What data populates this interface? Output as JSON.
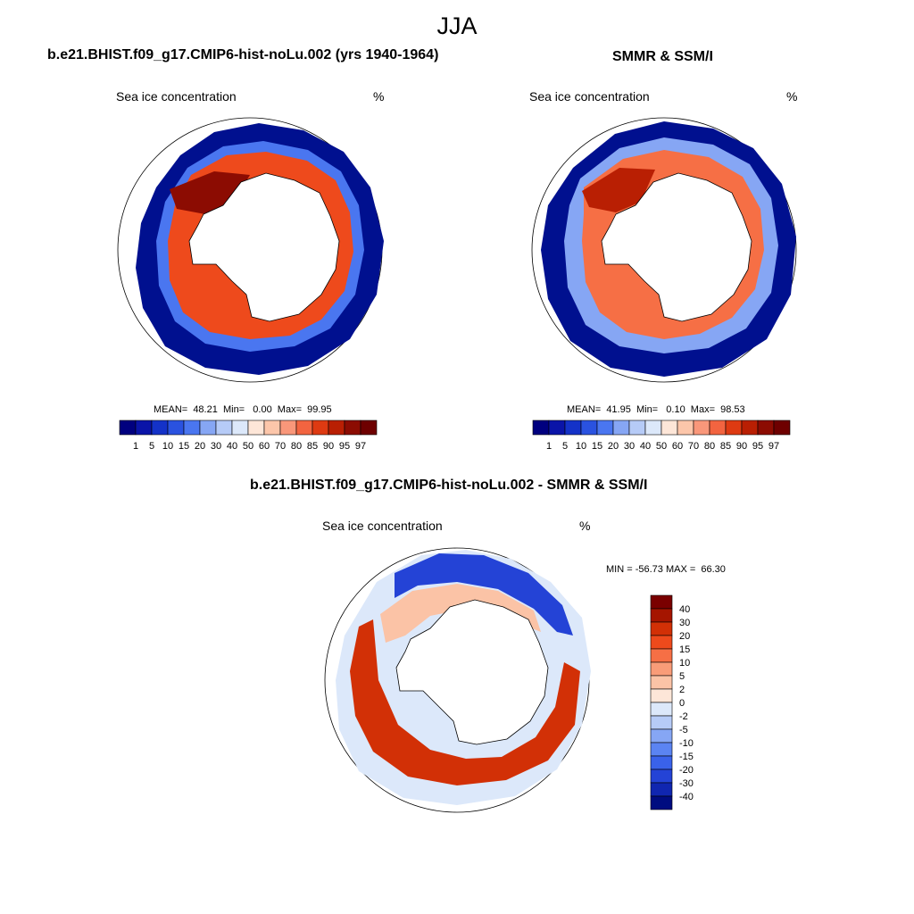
{
  "main_title": "JJA",
  "panels": [
    {
      "title": "b.e21.BHIST.f09_g17.CMIP6-hist-noLu.002 (yrs 1940-1964)",
      "variable": "Sea ice concentration",
      "units": "%",
      "stats_text": "MEAN=  48.21  Min=   0.00  Max=  99.95"
    },
    {
      "title": "SMMR & SSM/I",
      "variable": "Sea ice concentration",
      "units": "%",
      "stats_text": "MEAN=  41.95  Min=   0.10  Max=  98.53"
    },
    {
      "title": "b.e21.BHIST.f09_g17.CMIP6-hist-noLu.002 - SMMR & SSM/I",
      "variable": "Sea ice concentration",
      "units": "%",
      "stats_text": "MIN = -56.73 MAX =  66.30"
    }
  ],
  "colorbar_conc": {
    "labels": [
      "1",
      "5",
      "10",
      "15",
      "20",
      "30",
      "40",
      "50",
      "60",
      "70",
      "80",
      "85",
      "90",
      "95",
      "97"
    ],
    "colors": [
      "#00007f",
      "#0a14a8",
      "#1432c8",
      "#2a52e0",
      "#4a76f0",
      "#86a6f4",
      "#b6cbf7",
      "#dce8fa",
      "#fde6d8",
      "#fcc6aa",
      "#f9977a",
      "#f26440",
      "#de3a12",
      "#b91f03",
      "#8c0c02",
      "#6e0000"
    ]
  },
  "colorbar_diff": {
    "labels": [
      "40",
      "30",
      "20",
      "15",
      "10",
      "5",
      "2",
      "0",
      "-2",
      "-5",
      "-10",
      "-15",
      "-20",
      "-30",
      "-40"
    ],
    "colors": [
      "#7a0000",
      "#a51500",
      "#d23006",
      "#ee4a1c",
      "#f66f45",
      "#f99c78",
      "#fbc3a6",
      "#fde6d8",
      "#dce8fa",
      "#b6cbf7",
      "#86a6f4",
      "#5b84f2",
      "#3a62ea",
      "#2443d6",
      "#1026b0",
      "#000c80"
    ]
  },
  "map_colors": {
    "ocean": "#ffffff",
    "land": "#ffffff",
    "outline": "#000000"
  }
}
